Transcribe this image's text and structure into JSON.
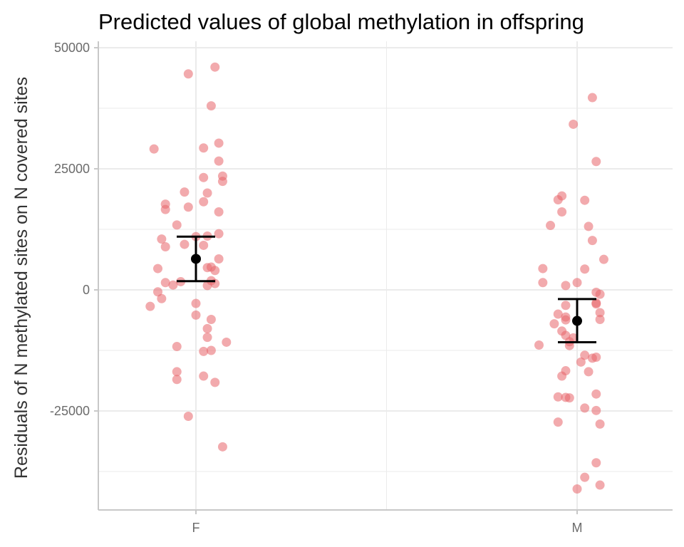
{
  "chart_data": {
    "type": "scatter",
    "title": "Predicted values of global methylation in offspring",
    "xlabel": "",
    "ylabel": "Residuals of N methylated sites on N covered sites",
    "categories": [
      "F",
      "M"
    ],
    "ylim": [
      -45000,
      50000
    ],
    "yticks": [
      50000,
      25000,
      0,
      -25000
    ],
    "ytick_labels": [
      "50000",
      "25000",
      "0",
      "-25000"
    ],
    "grid": true,
    "series": [
      {
        "name": "F",
        "points": [
          {
            "jitter": 0.05,
            "y": 46000
          },
          {
            "jitter": -0.02,
            "y": 44600
          },
          {
            "jitter": 0.04,
            "y": 38000
          },
          {
            "jitter": 0.06,
            "y": 30300
          },
          {
            "jitter": -0.11,
            "y": 29100
          },
          {
            "jitter": 0.02,
            "y": 29300
          },
          {
            "jitter": 0.06,
            "y": 26600
          },
          {
            "jitter": 0.07,
            "y": 23500
          },
          {
            "jitter": 0.02,
            "y": 23200
          },
          {
            "jitter": 0.07,
            "y": 22400
          },
          {
            "jitter": -0.03,
            "y": 20200
          },
          {
            "jitter": 0.03,
            "y": 20000
          },
          {
            "jitter": 0.02,
            "y": 18200
          },
          {
            "jitter": -0.08,
            "y": 17700
          },
          {
            "jitter": -0.02,
            "y": 17100
          },
          {
            "jitter": -0.08,
            "y": 16600
          },
          {
            "jitter": 0.06,
            "y": 16100
          },
          {
            "jitter": -0.05,
            "y": 13400
          },
          {
            "jitter": 0.06,
            "y": 11600
          },
          {
            "jitter": 0.03,
            "y": 11100
          },
          {
            "jitter": 0.0,
            "y": 11000
          },
          {
            "jitter": -0.09,
            "y": 10500
          },
          {
            "jitter": -0.03,
            "y": 9400
          },
          {
            "jitter": 0.02,
            "y": 9200
          },
          {
            "jitter": -0.08,
            "y": 8900
          },
          {
            "jitter": 0.06,
            "y": 6400
          },
          {
            "jitter": 0.04,
            "y": 4700
          },
          {
            "jitter": 0.03,
            "y": 4600
          },
          {
            "jitter": -0.1,
            "y": 4400
          },
          {
            "jitter": 0.05,
            "y": 4000
          },
          {
            "jitter": 0.04,
            "y": 1900
          },
          {
            "jitter": -0.04,
            "y": 1700
          },
          {
            "jitter": -0.08,
            "y": 1500
          },
          {
            "jitter": 0.05,
            "y": 1300
          },
          {
            "jitter": -0.06,
            "y": 1000
          },
          {
            "jitter": 0.03,
            "y": 900
          },
          {
            "jitter": -0.1,
            "y": -400
          },
          {
            "jitter": -0.09,
            "y": -1800
          },
          {
            "jitter": 0.0,
            "y": -2800
          },
          {
            "jitter": -0.12,
            "y": -3400
          },
          {
            "jitter": 0.0,
            "y": -5200
          },
          {
            "jitter": 0.04,
            "y": -6100
          },
          {
            "jitter": 0.03,
            "y": -8000
          },
          {
            "jitter": 0.03,
            "y": -9800
          },
          {
            "jitter": -0.05,
            "y": -11700
          },
          {
            "jitter": 0.08,
            "y": -10800
          },
          {
            "jitter": 0.04,
            "y": -12500
          },
          {
            "jitter": 0.02,
            "y": -12700
          },
          {
            "jitter": -0.05,
            "y": -16900
          },
          {
            "jitter": 0.02,
            "y": -17800
          },
          {
            "jitter": -0.05,
            "y": -18500
          },
          {
            "jitter": 0.05,
            "y": -19100
          },
          {
            "jitter": -0.02,
            "y": -26100
          },
          {
            "jitter": 0.07,
            "y": -32400
          }
        ],
        "mean": 6400,
        "ci_low": 1800,
        "ci_high": 11000
      },
      {
        "name": "M",
        "points": [
          {
            "jitter": 0.04,
            "y": 39700
          },
          {
            "jitter": -0.01,
            "y": 34200
          },
          {
            "jitter": 0.05,
            "y": 26500
          },
          {
            "jitter": -0.04,
            "y": 19400
          },
          {
            "jitter": -0.05,
            "y": 18600
          },
          {
            "jitter": 0.02,
            "y": 18500
          },
          {
            "jitter": -0.04,
            "y": 16100
          },
          {
            "jitter": -0.07,
            "y": 13300
          },
          {
            "jitter": 0.03,
            "y": 13100
          },
          {
            "jitter": 0.04,
            "y": 10200
          },
          {
            "jitter": 0.07,
            "y": 6300
          },
          {
            "jitter": -0.09,
            "y": 4400
          },
          {
            "jitter": 0.02,
            "y": 4300
          },
          {
            "jitter": -0.09,
            "y": 1500
          },
          {
            "jitter": 0.0,
            "y": 1500
          },
          {
            "jitter": -0.03,
            "y": 900
          },
          {
            "jitter": 0.05,
            "y": -500
          },
          {
            "jitter": 0.06,
            "y": -900
          },
          {
            "jitter": 0.05,
            "y": -2700
          },
          {
            "jitter": 0.05,
            "y": -2900
          },
          {
            "jitter": -0.03,
            "y": -3200
          },
          {
            "jitter": 0.06,
            "y": -4700
          },
          {
            "jitter": -0.05,
            "y": -5000
          },
          {
            "jitter": -0.03,
            "y": -5600
          },
          {
            "jitter": 0.06,
            "y": -6100
          },
          {
            "jitter": -0.03,
            "y": -6200
          },
          {
            "jitter": -0.06,
            "y": -7000
          },
          {
            "jitter": -0.04,
            "y": -8500
          },
          {
            "jitter": -0.03,
            "y": -9400
          },
          {
            "jitter": -0.01,
            "y": -9900
          },
          {
            "jitter": -0.02,
            "y": -10700
          },
          {
            "jitter": -0.1,
            "y": -11400
          },
          {
            "jitter": -0.02,
            "y": -11500
          },
          {
            "jitter": 0.02,
            "y": -13500
          },
          {
            "jitter": 0.04,
            "y": -14100
          },
          {
            "jitter": 0.05,
            "y": -13900
          },
          {
            "jitter": 0.01,
            "y": -14900
          },
          {
            "jitter": -0.03,
            "y": -16700
          },
          {
            "jitter": 0.03,
            "y": -16900
          },
          {
            "jitter": -0.04,
            "y": -17800
          },
          {
            "jitter": 0.05,
            "y": -21500
          },
          {
            "jitter": -0.05,
            "y": -22100
          },
          {
            "jitter": -0.03,
            "y": -22200
          },
          {
            "jitter": -0.02,
            "y": -22300
          },
          {
            "jitter": 0.02,
            "y": -24400
          },
          {
            "jitter": 0.05,
            "y": -24900
          },
          {
            "jitter": -0.05,
            "y": -27300
          },
          {
            "jitter": 0.06,
            "y": -27700
          },
          {
            "jitter": 0.05,
            "y": -35700
          },
          {
            "jitter": 0.02,
            "y": -38700
          },
          {
            "jitter": 0.06,
            "y": -40300
          },
          {
            "jitter": 0.0,
            "y": -41100
          }
        ],
        "mean": -6400,
        "ci_low": -10800,
        "ci_high": -1900
      }
    ],
    "colors": {
      "point": "#e8656a",
      "point_opacity": 0.55,
      "mean": "#000000",
      "errorbar": "#000000",
      "gridline": "#ebebeb",
      "axis": "#c8c8c8"
    }
  }
}
